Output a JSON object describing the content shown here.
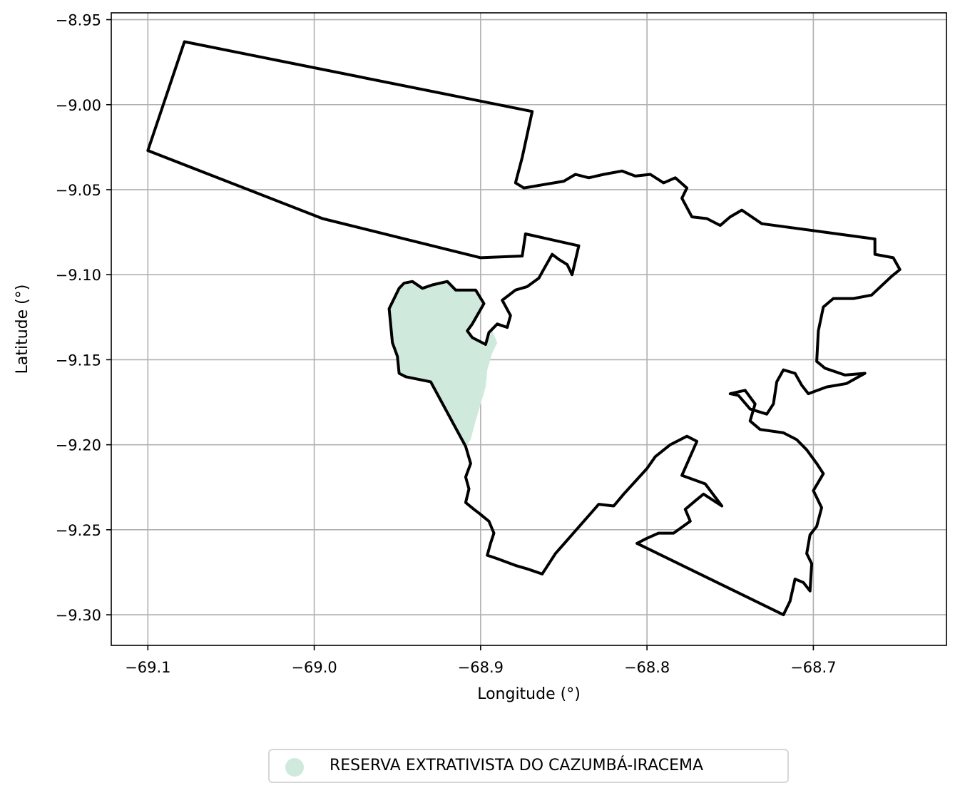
{
  "map": {
    "xlabel": "Longitude (°)",
    "ylabel": "Latitude (°)",
    "xlim": [
      -69.122,
      -68.62
    ],
    "ylim": [
      -9.318,
      -8.946
    ],
    "x_ticks": [
      {
        "value": -69.1,
        "label": "−69.1"
      },
      {
        "value": -69.0,
        "label": "−69.0"
      },
      {
        "value": -68.9,
        "label": "−68.9"
      },
      {
        "value": -68.8,
        "label": "−68.8"
      },
      {
        "value": -68.7,
        "label": "−68.7"
      }
    ],
    "y_ticks": [
      {
        "value": -8.95,
        "label": "−8.95"
      },
      {
        "value": -9.0,
        "label": "−9.00"
      },
      {
        "value": -9.05,
        "label": "−9.05"
      },
      {
        "value": -9.1,
        "label": "−9.10"
      },
      {
        "value": -9.15,
        "label": "−9.15"
      },
      {
        "value": -9.2,
        "label": "−9.20"
      },
      {
        "value": -9.25,
        "label": "−9.25"
      },
      {
        "value": -9.3,
        "label": "−9.30"
      }
    ],
    "grid": true,
    "boundary_color": "#000000",
    "highlight_color": "#cfeadd",
    "boundary": [
      [
        -69.078,
        -8.963
      ],
      [
        -68.869,
        -9.004
      ],
      [
        -68.875,
        -9.031
      ],
      [
        -68.879,
        -9.046
      ],
      [
        -68.874,
        -9.049
      ],
      [
        -68.862,
        -9.047
      ],
      [
        -68.85,
        -9.045
      ],
      [
        -68.843,
        -9.041
      ],
      [
        -68.835,
        -9.043
      ],
      [
        -68.826,
        -9.041
      ],
      [
        -68.815,
        -9.039
      ],
      [
        -68.807,
        -9.042
      ],
      [
        -68.798,
        -9.041
      ],
      [
        -68.79,
        -9.046
      ],
      [
        -68.783,
        -9.043
      ],
      [
        -68.776,
        -9.049
      ],
      [
        -68.779,
        -9.055
      ],
      [
        -68.773,
        -9.066
      ],
      [
        -68.764,
        -9.067
      ],
      [
        -68.756,
        -9.071
      ],
      [
        -68.75,
        -9.066
      ],
      [
        -68.743,
        -9.062
      ],
      [
        -68.731,
        -9.07
      ],
      [
        -68.693,
        -9.075
      ],
      [
        -68.663,
        -9.079
      ],
      [
        -68.663,
        -9.088
      ],
      [
        -68.652,
        -9.09
      ],
      [
        -68.648,
        -9.097
      ],
      [
        -68.653,
        -9.101
      ],
      [
        -68.665,
        -9.112
      ],
      [
        -68.676,
        -9.114
      ],
      [
        -68.688,
        -9.114
      ],
      [
        -68.694,
        -9.119
      ],
      [
        -68.697,
        -9.133
      ],
      [
        -68.698,
        -9.151
      ],
      [
        -68.693,
        -9.155
      ],
      [
        -68.681,
        -9.159
      ],
      [
        -68.669,
        -9.158
      ],
      [
        -68.68,
        -9.164
      ],
      [
        -68.692,
        -9.166
      ],
      [
        -68.703,
        -9.17
      ],
      [
        -68.707,
        -9.165
      ],
      [
        -68.711,
        -9.158
      ],
      [
        -68.718,
        -9.156
      ],
      [
        -68.722,
        -9.163
      ],
      [
        -68.724,
        -9.176
      ],
      [
        -68.728,
        -9.182
      ],
      [
        -68.738,
        -9.179
      ],
      [
        -68.745,
        -9.171
      ],
      [
        -68.75,
        -9.17
      ],
      [
        -68.741,
        -9.168
      ],
      [
        -68.735,
        -9.176
      ],
      [
        -68.738,
        -9.186
      ],
      [
        -68.732,
        -9.191
      ],
      [
        -68.718,
        -9.193
      ],
      [
        -68.71,
        -9.197
      ],
      [
        -68.704,
        -9.203
      ],
      [
        -68.698,
        -9.211
      ],
      [
        -68.694,
        -9.217
      ],
      [
        -68.7,
        -9.227
      ],
      [
        -68.695,
        -9.237
      ],
      [
        -68.698,
        -9.248
      ],
      [
        -68.702,
        -9.253
      ],
      [
        -68.704,
        -9.264
      ],
      [
        -68.701,
        -9.27
      ],
      [
        -68.702,
        -9.286
      ],
      [
        -68.706,
        -9.281
      ],
      [
        -68.711,
        -9.279
      ],
      [
        -68.714,
        -9.292
      ],
      [
        -68.718,
        -9.3
      ],
      [
        -68.806,
        -9.258
      ],
      [
        -68.8,
        -9.255
      ],
      [
        -68.793,
        -9.252
      ],
      [
        -68.784,
        -9.252
      ],
      [
        -68.774,
        -9.245
      ],
      [
        -68.777,
        -9.238
      ],
      [
        -68.771,
        -9.233
      ],
      [
        -68.766,
        -9.229
      ],
      [
        -68.755,
        -9.236
      ],
      [
        -68.765,
        -9.223
      ],
      [
        -68.779,
        -9.218
      ],
      [
        -68.77,
        -9.198
      ],
      [
        -68.776,
        -9.195
      ],
      [
        -68.786,
        -9.2
      ],
      [
        -68.795,
        -9.207
      ],
      [
        -68.8,
        -9.214
      ],
      [
        -68.814,
        -9.229
      ],
      [
        -68.82,
        -9.236
      ],
      [
        -68.829,
        -9.235
      ],
      [
        -68.855,
        -9.264
      ],
      [
        -68.863,
        -9.276
      ],
      [
        -68.872,
        -9.273
      ],
      [
        -68.879,
        -9.271
      ],
      [
        -68.89,
        -9.267
      ],
      [
        -68.896,
        -9.265
      ],
      [
        -68.894,
        -9.258
      ],
      [
        -68.892,
        -9.252
      ],
      [
        -68.895,
        -9.245
      ],
      [
        -68.9,
        -9.241
      ],
      [
        -68.904,
        -9.238
      ],
      [
        -68.909,
        -9.234
      ],
      [
        -68.907,
        -9.226
      ],
      [
        -68.909,
        -9.219
      ],
      [
        -68.906,
        -9.211
      ],
      [
        -68.909,
        -9.201
      ],
      [
        -68.93,
        -9.163
      ],
      [
        -68.945,
        -9.16
      ],
      [
        -68.949,
        -9.158
      ],
      [
        -68.95,
        -9.148
      ],
      [
        -68.953,
        -9.14
      ],
      [
        -68.954,
        -9.13
      ],
      [
        -68.955,
        -9.12
      ],
      [
        -68.949,
        -9.108
      ],
      [
        -68.946,
        -9.105
      ],
      [
        -68.941,
        -9.104
      ],
      [
        -68.935,
        -9.108
      ],
      [
        -68.929,
        -9.106
      ],
      [
        -68.92,
        -9.104
      ],
      [
        -68.915,
        -9.109
      ],
      [
        -68.903,
        -9.109
      ],
      [
        -68.898,
        -9.117
      ],
      [
        -68.905,
        -9.129
      ],
      [
        -68.908,
        -9.133
      ],
      [
        -68.905,
        -9.137
      ],
      [
        -68.897,
        -9.141
      ],
      [
        -68.895,
        -9.134
      ],
      [
        -68.89,
        -9.129
      ],
      [
        -68.884,
        -9.131
      ],
      [
        -68.882,
        -9.124
      ],
      [
        -68.887,
        -9.115
      ],
      [
        -68.879,
        -9.109
      ],
      [
        -68.872,
        -9.107
      ],
      [
        -68.865,
        -9.102
      ],
      [
        -68.861,
        -9.095
      ],
      [
        -68.857,
        -9.088
      ],
      [
        -68.853,
        -9.091
      ],
      [
        -68.848,
        -9.094
      ],
      [
        -68.845,
        -9.1
      ],
      [
        -68.841,
        -9.083
      ],
      [
        -68.873,
        -9.076
      ],
      [
        -68.875,
        -9.089
      ],
      [
        -68.9,
        -9.09
      ],
      [
        -68.995,
        -9.067
      ],
      [
        -69.1,
        -9.027
      ],
      [
        -69.078,
        -8.963
      ]
    ],
    "highlight": [
      [
        -68.949,
        -9.108
      ],
      [
        -68.941,
        -9.104
      ],
      [
        -68.935,
        -9.108
      ],
      [
        -68.92,
        -9.104
      ],
      [
        -68.915,
        -9.109
      ],
      [
        -68.903,
        -9.109
      ],
      [
        -68.898,
        -9.117
      ],
      [
        -68.905,
        -9.129
      ],
      [
        -68.908,
        -9.133
      ],
      [
        -68.905,
        -9.137
      ],
      [
        -68.897,
        -9.141
      ],
      [
        -68.893,
        -9.133
      ],
      [
        -68.89,
        -9.14
      ],
      [
        -68.893,
        -9.146
      ],
      [
        -68.896,
        -9.156
      ],
      [
        -68.897,
        -9.166
      ],
      [
        -68.9,
        -9.176
      ],
      [
        -68.903,
        -9.186
      ],
      [
        -68.906,
        -9.197
      ],
      [
        -68.909,
        -9.201
      ],
      [
        -68.93,
        -9.163
      ],
      [
        -68.945,
        -9.16
      ],
      [
        -68.949,
        -9.158
      ],
      [
        -68.95,
        -9.148
      ],
      [
        -68.953,
        -9.14
      ],
      [
        -68.954,
        -9.13
      ],
      [
        -68.955,
        -9.12
      ],
      [
        -68.949,
        -9.108
      ]
    ]
  },
  "legend": {
    "label": "RESERVA EXTRATIVISTA DO CAZUMBÁ-IRACEMA",
    "color": "#cfeadd"
  }
}
